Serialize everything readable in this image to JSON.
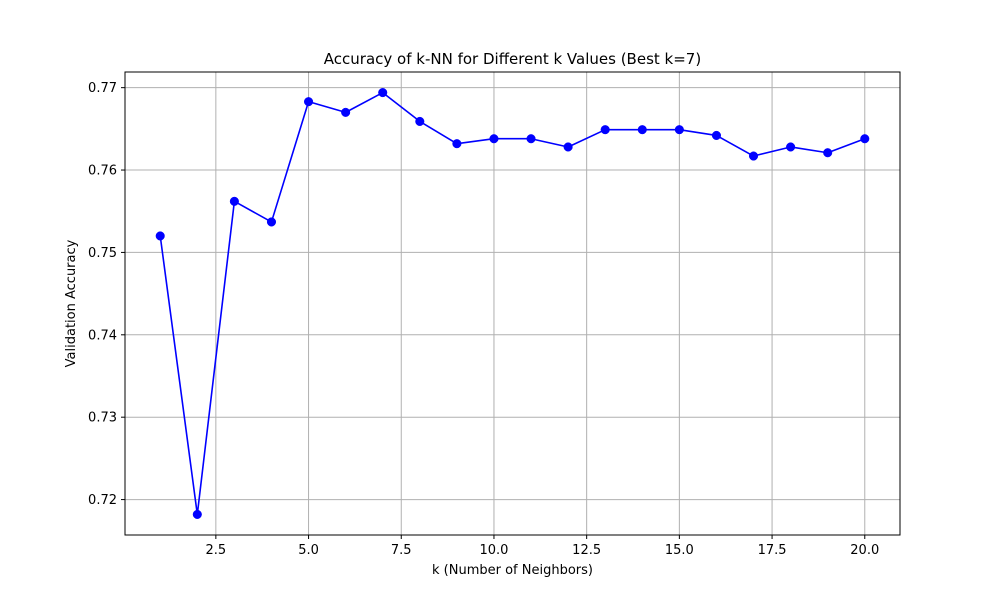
{
  "chart_data": {
    "type": "line",
    "title": "Accuracy of k-NN for Different k Values (Best k=7)",
    "xlabel": "k (Number of Neighbors)",
    "ylabel": "Validation Accuracy",
    "xlim": [
      0.05,
      20.95
    ],
    "ylim": [
      0.7157,
      0.7719
    ],
    "x_ticks": [
      2.5,
      5.0,
      7.5,
      10.0,
      12.5,
      15.0,
      17.5,
      20.0
    ],
    "x_tick_labels": [
      "2.5",
      "5.0",
      "7.5",
      "10.0",
      "12.5",
      "15.0",
      "17.5",
      "20.0"
    ],
    "y_ticks": [
      0.72,
      0.73,
      0.74,
      0.75,
      0.76,
      0.77
    ],
    "y_tick_labels": [
      "0.72",
      "0.73",
      "0.74",
      "0.75",
      "0.76",
      "0.77"
    ],
    "grid": true,
    "legend": "none",
    "marker": "circle",
    "series": [
      {
        "color": "#0000ff",
        "x": [
          1,
          2,
          3,
          4,
          5,
          6,
          7,
          8,
          9,
          10,
          11,
          12,
          13,
          14,
          15,
          16,
          17,
          18,
          19,
          20
        ],
        "y": [
          0.752,
          0.7182,
          0.7562,
          0.7537,
          0.7683,
          0.767,
          0.7694,
          0.7659,
          0.7632,
          0.7638,
          0.7638,
          0.7628,
          0.7649,
          0.7649,
          0.7649,
          0.7642,
          0.7617,
          0.7628,
          0.7621,
          0.7638
        ]
      }
    ]
  }
}
